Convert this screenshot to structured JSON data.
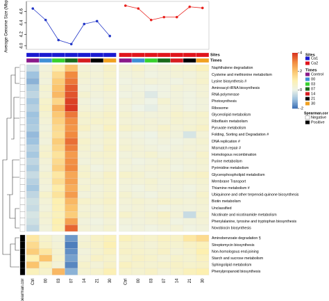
{
  "chart_data": [
    {
      "type": "line",
      "ylabel": "Average Genome Size (Mbp)",
      "ylim": [
        3.95,
        4.75
      ],
      "yticks": [
        {
          "value": 4,
          "label": "4.0"
        },
        4.2,
        4.4,
        4.6
      ],
      "series": [
        {
          "color": "#2438c8",
          "values": [
            4.65,
            4.45,
            4.1,
            4.03,
            4.38,
            4.43,
            4.17,
            null,
            null,
            null,
            null,
            null,
            null,
            null
          ]
        },
        {
          "color": "#e8211d",
          "values": [
            null,
            null,
            null,
            null,
            null,
            null,
            null,
            4.7,
            4.65,
            4.45,
            4.5,
            4.5,
            4.68,
            4.66
          ]
        }
      ]
    },
    {
      "type": "heatmap",
      "columns": [
        "Ctrl",
        "00",
        "03",
        "07",
        "14",
        "21",
        "30",
        "Ctrl",
        "00",
        "03",
        "07",
        "14",
        "21",
        "30"
      ],
      "rows": [
        "Naphthalene degradation",
        "Cysteine and methionine metabolism",
        "Lysine biosynthesis #",
        "Aminoacyl-tRNA biosynthesis",
        "RNA polymerase",
        "Photosynthesis",
        "Ribosome",
        "Glycerolipid metabolism",
        "Riboflavin metabolism",
        "Pyruvate metabolism",
        "Folding, Sorting and Degradation #",
        "DNA replication #",
        "Mismatch repair #",
        "Homologous recombination",
        "Purine metabolism",
        "Pyrimidine metabolism",
        "Glycerophospholipid metabolism",
        "Membrane Transport",
        "Thiamine metabolism #",
        "Ubiquinone and other terpenoid-quinone biosynthesis",
        "Biotin metabolism",
        "Unclassified",
        "Nicotinate and nicotinamide metabolism",
        "Phenylalanine, tyrosine and tryptophan biosynthesis",
        "Novobiocin biosynthesis",
        "Aminobenzoate degradation §",
        "Streptomycin biosynthesis",
        "Non-homologous end-joining",
        "Starch and sucrose metabolism",
        "Sphingolipid metabolism",
        "Phenylpropanoid biosynthesis"
      ],
      "values": [
        [
          -0.5,
          0.2,
          1.0,
          2.0,
          0.3,
          0.2,
          0.6,
          0.3,
          0.5,
          0.2,
          0.3,
          0.4,
          0.5,
          0.8
        ],
        [
          -1.0,
          0.3,
          1.5,
          3.0,
          0.4,
          0.3,
          0.5,
          0.2,
          0.3,
          0.1,
          0.2,
          0.3,
          0.2,
          0.4
        ],
        [
          -1.2,
          0.2,
          1.8,
          3.2,
          0.3,
          0.2,
          0.4,
          0.1,
          0.2,
          0.3,
          0.2,
          0.1,
          0.3,
          0.5
        ],
        [
          -0.8,
          0.4,
          2.0,
          3.5,
          0.2,
          0.3,
          0.5,
          0.2,
          0.1,
          0.0,
          0.1,
          0.3,
          0.2,
          0.3
        ],
        [
          -0.6,
          0.3,
          2.2,
          3.6,
          0.4,
          0.2,
          0.3,
          0.1,
          0.2,
          -0.2,
          0.1,
          0.2,
          0.1,
          0.3
        ],
        [
          -0.9,
          0.5,
          1.6,
          3.8,
          0.2,
          0.1,
          0.3,
          0.3,
          0.2,
          0.0,
          0.4,
          0.2,
          0.1,
          0.2
        ],
        [
          -0.7,
          0.6,
          2.3,
          3.9,
          0.3,
          0.2,
          0.4,
          0.2,
          0.0,
          -0.1,
          0.2,
          0.3,
          0.1,
          0.2
        ],
        [
          -1.0,
          0.4,
          1.9,
          3.2,
          0.5,
          0.4,
          0.6,
          0.4,
          0.3,
          0.2,
          0.3,
          0.5,
          0.4,
          0.5
        ],
        [
          -0.9,
          0.3,
          1.7,
          2.9,
          0.4,
          0.5,
          0.5,
          0.3,
          0.2,
          0.3,
          0.2,
          0.4,
          0.3,
          0.4
        ],
        [
          -0.8,
          0.2,
          1.5,
          2.8,
          0.6,
          0.3,
          0.7,
          0.5,
          0.4,
          0.3,
          0.5,
          0.3,
          0.4,
          0.6
        ],
        [
          -1.1,
          0.3,
          1.4,
          3.0,
          0.3,
          0.2,
          0.4,
          0.2,
          0.1,
          0.0,
          0.3,
          0.2,
          -0.3,
          0.3
        ],
        [
          -1.0,
          0.2,
          1.8,
          3.3,
          0.5,
          0.3,
          0.5,
          0.3,
          0.2,
          0.1,
          0.2,
          0.1,
          0.2,
          0.4
        ],
        [
          -0.7,
          0.4,
          1.6,
          3.1,
          0.4,
          0.2,
          0.6,
          0.4,
          0.3,
          0.2,
          0.1,
          0.2,
          0.3,
          0.3
        ],
        [
          -0.9,
          0.5,
          1.3,
          2.7,
          0.3,
          0.4,
          0.5,
          0.2,
          0.3,
          0.4,
          0.2,
          0.3,
          0.2,
          0.5
        ],
        [
          -0.6,
          0.3,
          1.5,
          2.9,
          0.2,
          0.3,
          0.4,
          0.3,
          0.1,
          0.2,
          0.4,
          0.2,
          0.3,
          0.4
        ],
        [
          -0.8,
          0.2,
          1.7,
          3.0,
          0.4,
          0.1,
          0.3,
          0.2,
          0.2,
          0.3,
          0.3,
          0.1,
          0.2,
          0.3
        ],
        [
          -0.5,
          0.4,
          1.2,
          2.5,
          0.5,
          0.3,
          0.6,
          0.5,
          0.4,
          0.2,
          0.3,
          0.4,
          0.5,
          0.6
        ],
        [
          -0.7,
          0.3,
          1.4,
          2.6,
          0.3,
          0.4,
          0.5,
          0.3,
          0.3,
          0.4,
          0.2,
          0.3,
          0.3,
          0.4
        ],
        [
          -0.9,
          0.2,
          1.1,
          2.4,
          0.4,
          0.2,
          0.4,
          0.2,
          0.1,
          0.3,
          0.2,
          0.2,
          0.1,
          0.3
        ],
        [
          -0.6,
          0.5,
          1.3,
          2.7,
          0.2,
          0.3,
          0.5,
          0.4,
          0.2,
          0.1,
          0.3,
          0.2,
          0.2,
          0.5
        ],
        [
          -0.4,
          0.3,
          1.0,
          2.2,
          0.5,
          0.4,
          0.6,
          0.3,
          0.4,
          0.3,
          0.5,
          0.4,
          0.3,
          0.4
        ],
        [
          -0.5,
          0.2,
          0.9,
          2.0,
          0.3,
          0.2,
          0.4,
          0.2,
          0.3,
          0.2,
          0.1,
          0.2,
          0.2,
          0.3
        ],
        [
          -0.3,
          0.4,
          0.8,
          1.8,
          0.4,
          0.3,
          0.5,
          0.5,
          0.3,
          0.4,
          0.6,
          0.3,
          -0.5,
          0.4
        ],
        [
          -0.4,
          0.3,
          1.0,
          2.6,
          0.2,
          0.1,
          0.3,
          0.2,
          0.2,
          0.3,
          0.4,
          0.1,
          0.2,
          0.3
        ],
        [
          -0.6,
          0.2,
          0.9,
          3.4,
          0.3,
          0.2,
          0.4,
          0.1,
          0.2,
          0.1,
          0.2,
          0.3,
          0.1,
          0.2
        ],
        [
          1.2,
          0.5,
          0.2,
          -1.5,
          0.3,
          0.6,
          0.8,
          0.8,
          0.6,
          0.5,
          0.7,
          0.6,
          1.2,
          1.5
        ],
        [
          1.5,
          0.6,
          0.3,
          -1.8,
          0.4,
          0.5,
          0.9,
          0.5,
          0.4,
          0.3,
          0.5,
          0.4,
          0.6,
          0.8
        ],
        [
          1.8,
          1.2,
          0.4,
          -1.6,
          0.2,
          0.4,
          0.7,
          0.6,
          0.5,
          0.4,
          0.6,
          0.3,
          0.5,
          1.0
        ],
        [
          1.0,
          2.0,
          0.5,
          -1.4,
          0.3,
          0.6,
          0.5,
          0.4,
          0.6,
          0.5,
          0.3,
          0.5,
          0.4,
          0.7
        ],
        [
          2.0,
          0.8,
          0.3,
          -1.7,
          0.5,
          0.3,
          0.6,
          0.7,
          0.5,
          0.4,
          0.5,
          0.6,
          0.5,
          0.6
        ],
        [
          0.8,
          0.5,
          2.2,
          -1.2,
          0.4,
          0.5,
          0.9,
          0.5,
          0.4,
          0.6,
          0.3,
          0.5,
          0.8,
          1.0
        ]
      ],
      "zlim": [
        -2,
        4
      ],
      "zticks": [
        -2,
        0,
        2,
        4
      ],
      "colors": [
        "#3a6db3",
        "#9fc3df",
        "#eef3e6",
        "#fdf0b0",
        "#fbc46d",
        "#f18a3f",
        "#d7301f"
      ],
      "sites_title": "Sites",
      "sites": [
        {
          "name": "Ca1",
          "color": "#1a1ad0"
        },
        {
          "name": "Ca2",
          "color": "#e0141c"
        }
      ],
      "times_title": "Times",
      "times": [
        {
          "name": "Control",
          "color": "#8a1a8a"
        },
        {
          "name": "00",
          "color": "#3f8fd6"
        },
        {
          "name": "03",
          "color": "#37d12e"
        },
        {
          "name": "07",
          "color": "#1b6a1b"
        },
        {
          "name": "14",
          "color": "#d51d20"
        },
        {
          "name": "21",
          "color": "#000000"
        },
        {
          "name": "30",
          "color": "#f0a020"
        }
      ],
      "spearman_title": "Spearman.cor",
      "spearman_levels": [
        {
          "name": "Negative",
          "color": "#ffffff"
        },
        {
          "name": "Positive",
          "color": "#000000"
        }
      ],
      "row_spearman": [
        "Negative",
        "Negative",
        "Negative",
        "Negative",
        "Negative",
        "Negative",
        "Negative",
        "Negative",
        "Negative",
        "Negative",
        "Negative",
        "Negative",
        "Negative",
        "Negative",
        "Negative",
        "Negative",
        "Negative",
        "Negative",
        "Negative",
        "Negative",
        "Negative",
        "Negative",
        "Negative",
        "Negative",
        "Negative",
        "Positive",
        "Positive",
        "Positive",
        "Positive",
        "Positive",
        "Positive"
      ]
    }
  ]
}
